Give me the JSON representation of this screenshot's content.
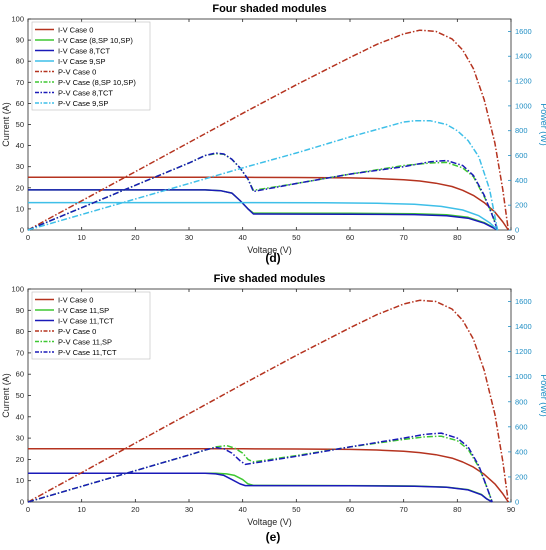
{
  "figure": {
    "panel_d_label": "(d)",
    "panel_e_label": "(e)"
  },
  "chart_data": [
    {
      "type": "line",
      "title": "Four shaded modules",
      "xlabel": "Voltage (V)",
      "ylabel": "Current (A)",
      "y2label": "Power (W)",
      "xlim": [
        0,
        90
      ],
      "ylim": [
        0,
        100
      ],
      "y2lim": [
        0,
        1700
      ],
      "xticks": [
        0,
        10,
        20,
        30,
        40,
        50,
        60,
        70,
        80,
        90
      ],
      "yticks": [
        0,
        10,
        20,
        30,
        40,
        50,
        60,
        70,
        80,
        90,
        100
      ],
      "y2ticks": [
        0,
        200,
        400,
        600,
        800,
        1000,
        1200,
        1400,
        1600
      ],
      "grid": false,
      "legend_position": "top-left",
      "series": [
        {
          "name": "I-V Case 0",
          "axis": "left",
          "style": "solid",
          "color": "#b5331f",
          "x": [
            0,
            40,
            50,
            60,
            65,
            70,
            73,
            76,
            79,
            81,
            83,
            85,
            87,
            88.5,
            89.5
          ],
          "y": [
            25,
            25,
            24.9,
            24.7,
            24.4,
            23.8,
            23.2,
            22.2,
            20.6,
            18.8,
            16.4,
            13,
            8.5,
            3.8,
            0
          ]
        },
        {
          "name": "I-V Case (8,SP 10,SP)",
          "axis": "left",
          "style": "solid",
          "color": "#3ec732",
          "x": [
            0,
            33,
            36,
            38,
            39.5,
            41,
            42,
            60,
            72,
            78,
            82,
            85,
            86.5,
            87.5
          ],
          "y": [
            19,
            19,
            18.6,
            17.5,
            14,
            10,
            8,
            7.9,
            7.7,
            7.2,
            6,
            3.5,
            1.5,
            0
          ]
        },
        {
          "name": "I-V Case 8,TCT",
          "axis": "left",
          "style": "solid",
          "color": "#1a1ab8",
          "x": [
            0,
            33,
            36,
            38,
            39.5,
            41,
            42,
            60,
            72,
            78,
            82,
            85,
            86.5,
            87.5
          ],
          "y": [
            19,
            19,
            18.6,
            17.5,
            14,
            10,
            7.6,
            7.5,
            7.3,
            6.8,
            5.6,
            3.2,
            1.3,
            0
          ]
        },
        {
          "name": "I-V Case 9,SP",
          "axis": "left",
          "style": "solid",
          "color": "#3ebfe8",
          "x": [
            0,
            40,
            55,
            65,
            72,
            77,
            81,
            84,
            86,
            87.5
          ],
          "y": [
            13,
            13,
            12.9,
            12.7,
            12.2,
            11.2,
            9.5,
            6.8,
            3.5,
            0
          ]
        },
        {
          "name": "P-V Case 0",
          "axis": "right",
          "style": "dashdot",
          "color": "#b5331f",
          "x": [
            0,
            10,
            20,
            30,
            40,
            50,
            60,
            65,
            70,
            73,
            76,
            79,
            81,
            83,
            85,
            87,
            88.5,
            89.5
          ],
          "y": [
            0,
            235,
            470,
            705,
            940,
            1170,
            1390,
            1495,
            1580,
            1610,
            1600,
            1540,
            1450,
            1300,
            1050,
            700,
            320,
            0
          ]
        },
        {
          "name": "P-V Case (8,SP 10,SP)",
          "axis": "right",
          "style": "dashdot",
          "color": "#3ec732",
          "x": [
            0,
            10,
            20,
            30,
            33,
            35,
            36.5,
            38,
            39.5,
            41,
            42,
            50,
            60,
            70,
            75,
            78,
            81,
            83,
            85,
            86.5,
            87.5
          ],
          "y": [
            0,
            180,
            360,
            540,
            600,
            615,
            610,
            570,
            500,
            410,
            320,
            375,
            450,
            520,
            540,
            545,
            500,
            430,
            270,
            130,
            0
          ]
        },
        {
          "name": "P-V Case 8,TCT",
          "axis": "right",
          "style": "dashdot",
          "color": "#1a1ab8",
          "x": [
            0,
            10,
            20,
            30,
            33,
            35,
            36.5,
            38,
            39.5,
            41,
            42,
            50,
            60,
            70,
            75,
            78,
            81,
            83,
            85,
            86.5,
            87.5
          ],
          "y": [
            0,
            180,
            360,
            540,
            600,
            620,
            612,
            570,
            500,
            410,
            310,
            375,
            450,
            510,
            550,
            560,
            520,
            440,
            280,
            120,
            0
          ]
        },
        {
          "name": "P-V Case 9,SP",
          "axis": "right",
          "style": "dashdot",
          "color": "#3ebfe8",
          "x": [
            0,
            10,
            20,
            30,
            40,
            50,
            60,
            65,
            70,
            72,
            75,
            78,
            80,
            82,
            84,
            86,
            87.5
          ],
          "y": [
            0,
            125,
            250,
            375,
            500,
            620,
            750,
            810,
            870,
            880,
            880,
            850,
            800,
            720,
            590,
            330,
            0
          ]
        }
      ]
    },
    {
      "type": "line",
      "title": "Five shaded modules",
      "xlabel": "Voltage (V)",
      "ylabel": "Current (A)",
      "y2label": "Power (W)",
      "xlim": [
        0,
        90
      ],
      "ylim": [
        0,
        100
      ],
      "y2lim": [
        0,
        1700
      ],
      "xticks": [
        0,
        10,
        20,
        30,
        40,
        50,
        60,
        70,
        80,
        90
      ],
      "yticks": [
        0,
        10,
        20,
        30,
        40,
        50,
        60,
        70,
        80,
        90,
        100
      ],
      "y2ticks": [
        0,
        200,
        400,
        600,
        800,
        1000,
        1200,
        1400,
        1600
      ],
      "grid": false,
      "legend_position": "top-left",
      "series": [
        {
          "name": "I-V Case 0",
          "axis": "left",
          "style": "solid",
          "color": "#b5331f",
          "x": [
            0,
            40,
            50,
            60,
            65,
            70,
            73,
            76,
            79,
            81,
            83,
            85,
            87,
            88.5,
            89.5
          ],
          "y": [
            25,
            25,
            24.9,
            24.7,
            24.4,
            23.8,
            23.2,
            22.2,
            20.6,
            18.8,
            16.4,
            13,
            8.5,
            3.8,
            0
          ]
        },
        {
          "name": "I-V Case 11,SP",
          "axis": "left",
          "style": "solid",
          "color": "#3ec732",
          "x": [
            0,
            35,
            37,
            38.5,
            40,
            41,
            42,
            60,
            72,
            78,
            82,
            84.5,
            85.5,
            86.5
          ],
          "y": [
            13.5,
            13.5,
            13.2,
            12.5,
            10.5,
            8.5,
            7.8,
            7.7,
            7.5,
            7,
            5.8,
            3.5,
            1.5,
            0
          ]
        },
        {
          "name": "I-V Case 11,TCT",
          "axis": "left",
          "style": "solid",
          "color": "#1a1ab8",
          "x": [
            0,
            33,
            35,
            36.5,
            38,
            39.5,
            40.5,
            60,
            72,
            78,
            82,
            84.5,
            85.5,
            86.5
          ],
          "y": [
            13.5,
            13.5,
            13.2,
            12.5,
            10.5,
            8.5,
            7.7,
            7.6,
            7.4,
            6.9,
            5.7,
            3.4,
            1.4,
            0
          ]
        },
        {
          "name": "P-V Case 0",
          "axis": "right",
          "style": "dashdot",
          "color": "#b5331f",
          "x": [
            0,
            10,
            20,
            30,
            40,
            50,
            60,
            65,
            70,
            73,
            76,
            79,
            81,
            83,
            85,
            87,
            88.5,
            89.5
          ],
          "y": [
            0,
            235,
            470,
            705,
            940,
            1170,
            1390,
            1495,
            1580,
            1610,
            1600,
            1540,
            1450,
            1300,
            1050,
            700,
            320,
            0
          ]
        },
        {
          "name": "P-V Case 11,SP",
          "axis": "right",
          "style": "dashdot",
          "color": "#3ec732",
          "x": [
            0,
            10,
            20,
            30,
            35,
            37,
            38.5,
            40,
            41,
            42,
            50,
            60,
            70,
            74,
            77,
            80,
            82,
            84,
            85.5,
            86.5
          ],
          "y": [
            0,
            125,
            250,
            375,
            440,
            450,
            430,
            390,
            340,
            320,
            370,
            440,
            500,
            520,
            525,
            490,
            420,
            280,
            120,
            0
          ]
        },
        {
          "name": "P-V Case 11,TCT",
          "axis": "right",
          "style": "dashdot",
          "color": "#1a1ab8",
          "x": [
            0,
            10,
            20,
            30,
            33,
            35,
            36.5,
            38,
            39.5,
            40.5,
            50,
            60,
            70,
            74,
            77,
            80,
            82,
            84,
            85.5,
            86.5
          ],
          "y": [
            0,
            125,
            250,
            375,
            415,
            435,
            425,
            390,
            330,
            300,
            365,
            440,
            510,
            540,
            550,
            510,
            440,
            290,
            120,
            0
          ]
        }
      ]
    }
  ]
}
